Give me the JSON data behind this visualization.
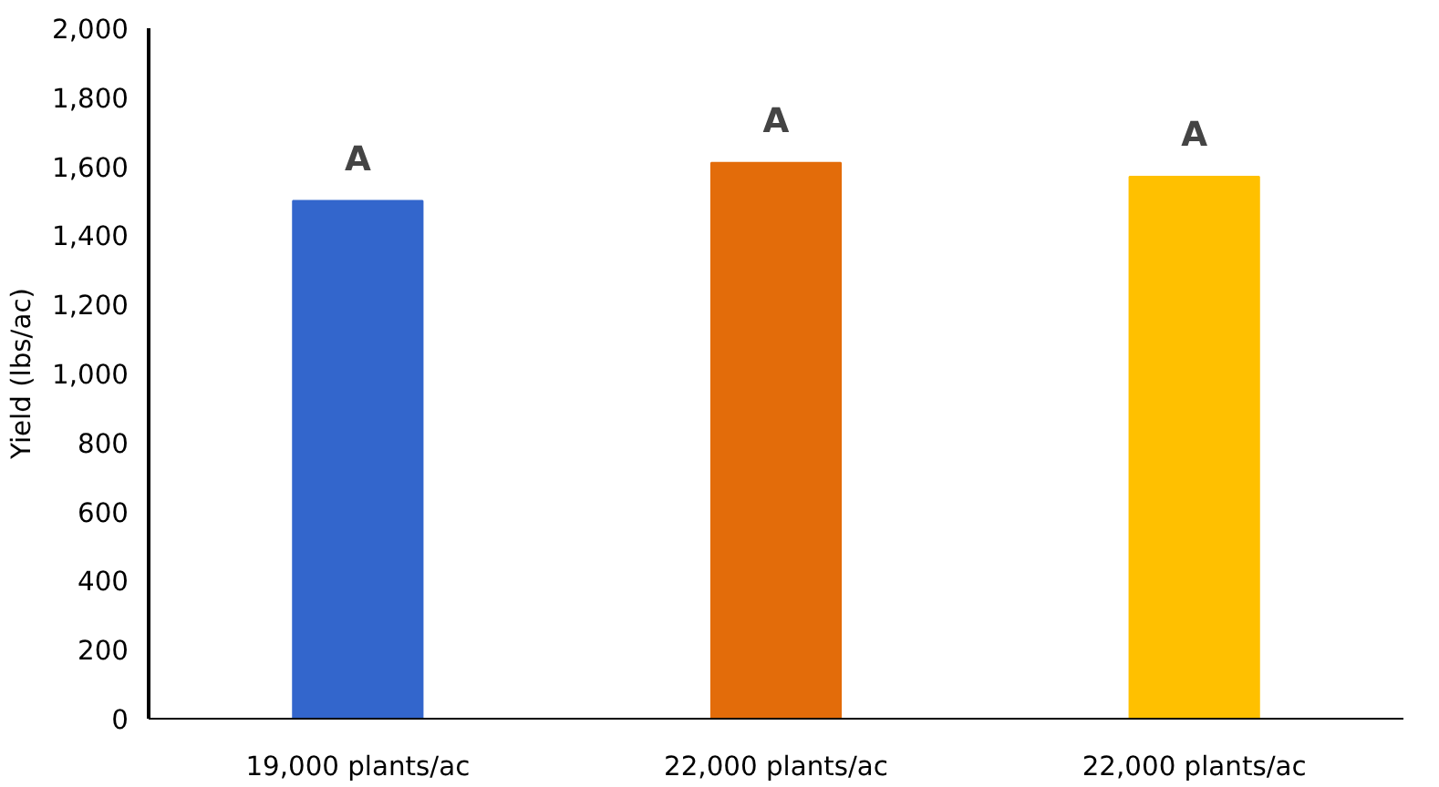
{
  "chart_data": {
    "type": "bar",
    "ylabel": "Yield (lbs/ac)",
    "categories": [
      "19,000 plants/ac",
      "22,000 plants/ac",
      "22,000 plants/ac"
    ],
    "values": [
      1500,
      1610,
      1570
    ],
    "colors": [
      "#3366cc",
      "#e36c0a",
      "#ffc000"
    ],
    "ylim": [
      0,
      2000
    ],
    "yticks": [
      {
        "value": 0,
        "label": "0"
      },
      {
        "value": 200,
        "label": "200"
      },
      {
        "value": 400,
        "label": "400"
      },
      {
        "value": 600,
        "label": "600"
      },
      {
        "value": 800,
        "label": "800"
      },
      {
        "value": 1000,
        "label": "1,000"
      },
      {
        "value": 1200,
        "label": "1,200"
      },
      {
        "value": 1400,
        "label": "1,400"
      },
      {
        "value": 1600,
        "label": "1,600"
      },
      {
        "value": 1800,
        "label": "1,800"
      },
      {
        "value": 2000,
        "label": "2,000"
      }
    ],
    "grid": false,
    "annotations": [
      "A",
      "A",
      "A"
    ]
  }
}
